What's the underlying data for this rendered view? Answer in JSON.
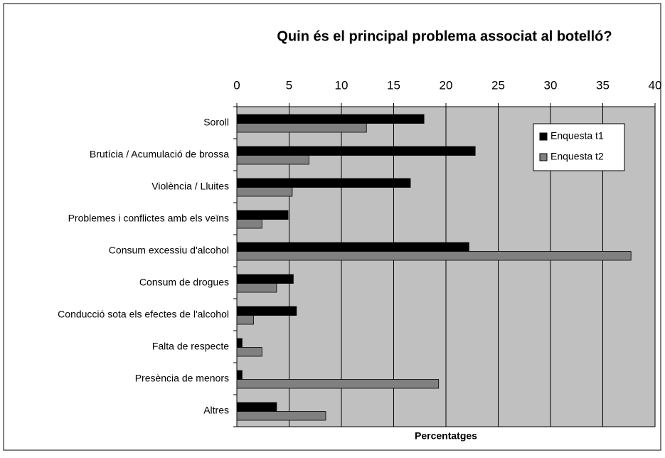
{
  "chart_data": {
    "type": "barh",
    "title": "Quin és el principal problema associat al botelló?",
    "xlabel": "Percentatges",
    "categories": [
      "Soroll",
      "Brutícia / Acumulació de brossa",
      "Violència / Lluites",
      "Problemes i conflictes amb els veïns",
      "Consum excessiu d'alcohol",
      "Consum de drogues",
      "Conducció sota els efectes de l'alcohol",
      "Falta de respecte",
      "Presència de menors",
      "Altres"
    ],
    "series": [
      {
        "name": "Enquesta t1",
        "color": "#000000",
        "values": [
          17.9,
          22.8,
          16.6,
          4.9,
          22.2,
          5.4,
          5.7,
          0.5,
          0.5,
          3.8
        ]
      },
      {
        "name": "Enquesta t2",
        "color": "#808080",
        "values": [
          12.4,
          6.9,
          5.3,
          2.4,
          37.7,
          3.8,
          1.6,
          2.4,
          19.3,
          8.5
        ]
      }
    ],
    "xlim": [
      0,
      40
    ],
    "xticks": [
      0,
      5,
      10,
      15,
      20,
      25,
      30,
      35,
      40
    ],
    "grid": true,
    "legend": "upper right",
    "background": "#c0c0c0"
  }
}
